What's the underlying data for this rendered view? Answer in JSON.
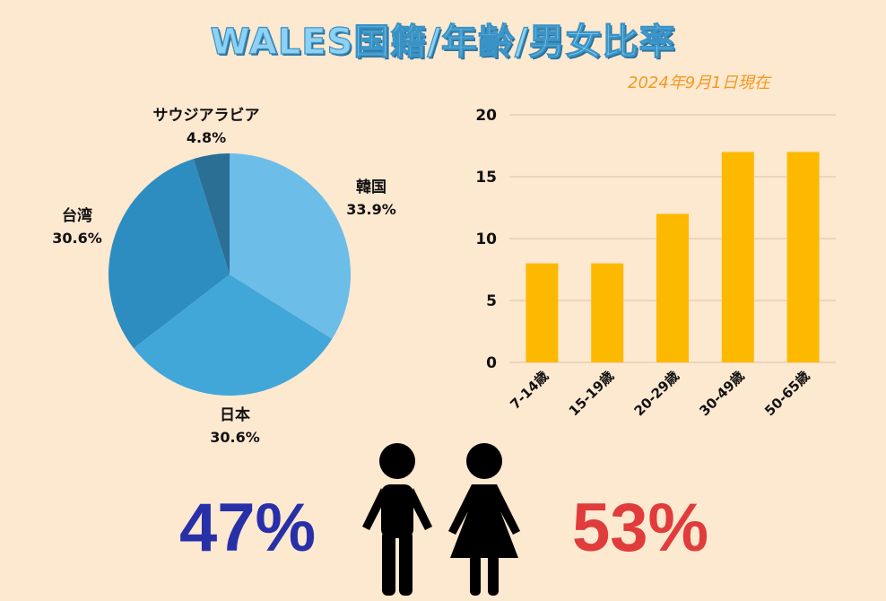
{
  "header": {
    "title": "WALES国籍/年齢/男女比率",
    "date": "2024年9月1日現在"
  },
  "colors": {
    "background": "#fde8d0",
    "bar": "#fdb900",
    "male": "#2830a8",
    "female": "#e03c3c",
    "pie": [
      "#6cbde8",
      "#41a7d8",
      "#2e8dc0",
      "#2b6f95"
    ]
  },
  "chart_data": [
    {
      "type": "pie",
      "slices": [
        {
          "label": "韓国",
          "value": 33.9,
          "display": "33.9%"
        },
        {
          "label": "日本",
          "value": 30.6,
          "display": "30.6%"
        },
        {
          "label": "台湾",
          "value": 30.6,
          "display": "30.6%"
        },
        {
          "label": "サウジアラビア",
          "value": 4.8,
          "display": "4.8%"
        }
      ]
    },
    {
      "type": "bar",
      "categories": [
        "7-14歳",
        "15-19歳",
        "20-29歳",
        "30-49歳",
        "50-65歳"
      ],
      "values": [
        8,
        8,
        12,
        17,
        17
      ],
      "ylim": [
        0,
        20
      ],
      "yticks": [
        "0",
        "5",
        "10",
        "15",
        "20"
      ],
      "grid": true
    }
  ],
  "gender": {
    "male_percent": "47%",
    "female_percent": "53%",
    "male_icon": "man-icon",
    "female_icon": "woman-icon"
  }
}
